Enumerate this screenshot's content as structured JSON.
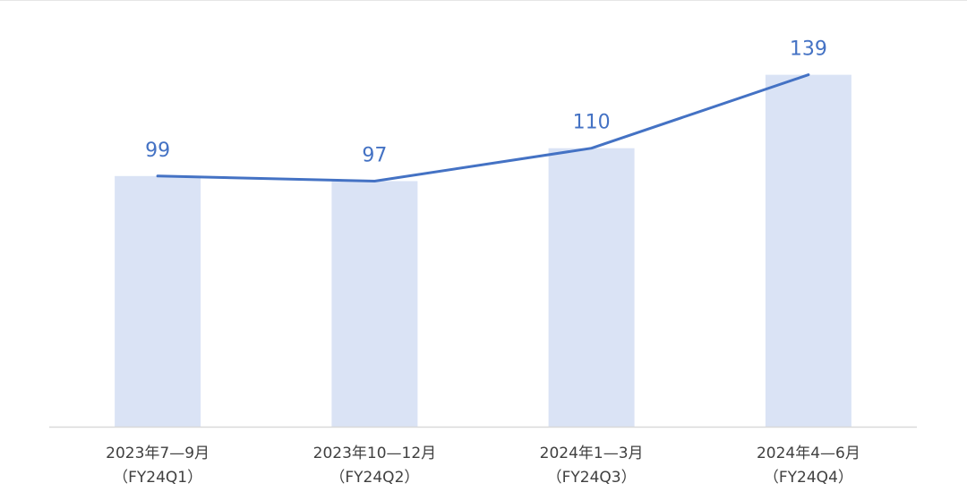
{
  "chart_data": {
    "type": "bar",
    "categories": [
      [
        "2023年7—9月",
        "（FY24Q1）"
      ],
      [
        "2023年10—12月",
        "（FY24Q2）"
      ],
      [
        "2024年1—3月",
        "（FY24Q3）"
      ],
      [
        "2024年4—6月",
        "（FY24Q4）"
      ]
    ],
    "series": [
      {
        "type": "bar",
        "values": [
          99,
          97,
          110,
          139
        ],
        "color": "#dae3f5"
      },
      {
        "type": "line",
        "values": [
          99,
          97,
          110,
          139
        ],
        "color": "#4472c4"
      }
    ],
    "data_labels": [
      "99",
      "97",
      "110",
      "139"
    ],
    "ylim": [
      0,
      150
    ],
    "grid": false,
    "legend": "none",
    "label_color": "#4472c4",
    "axis_color": "#d9d9d9",
    "tick_label_color": "#404040"
  }
}
